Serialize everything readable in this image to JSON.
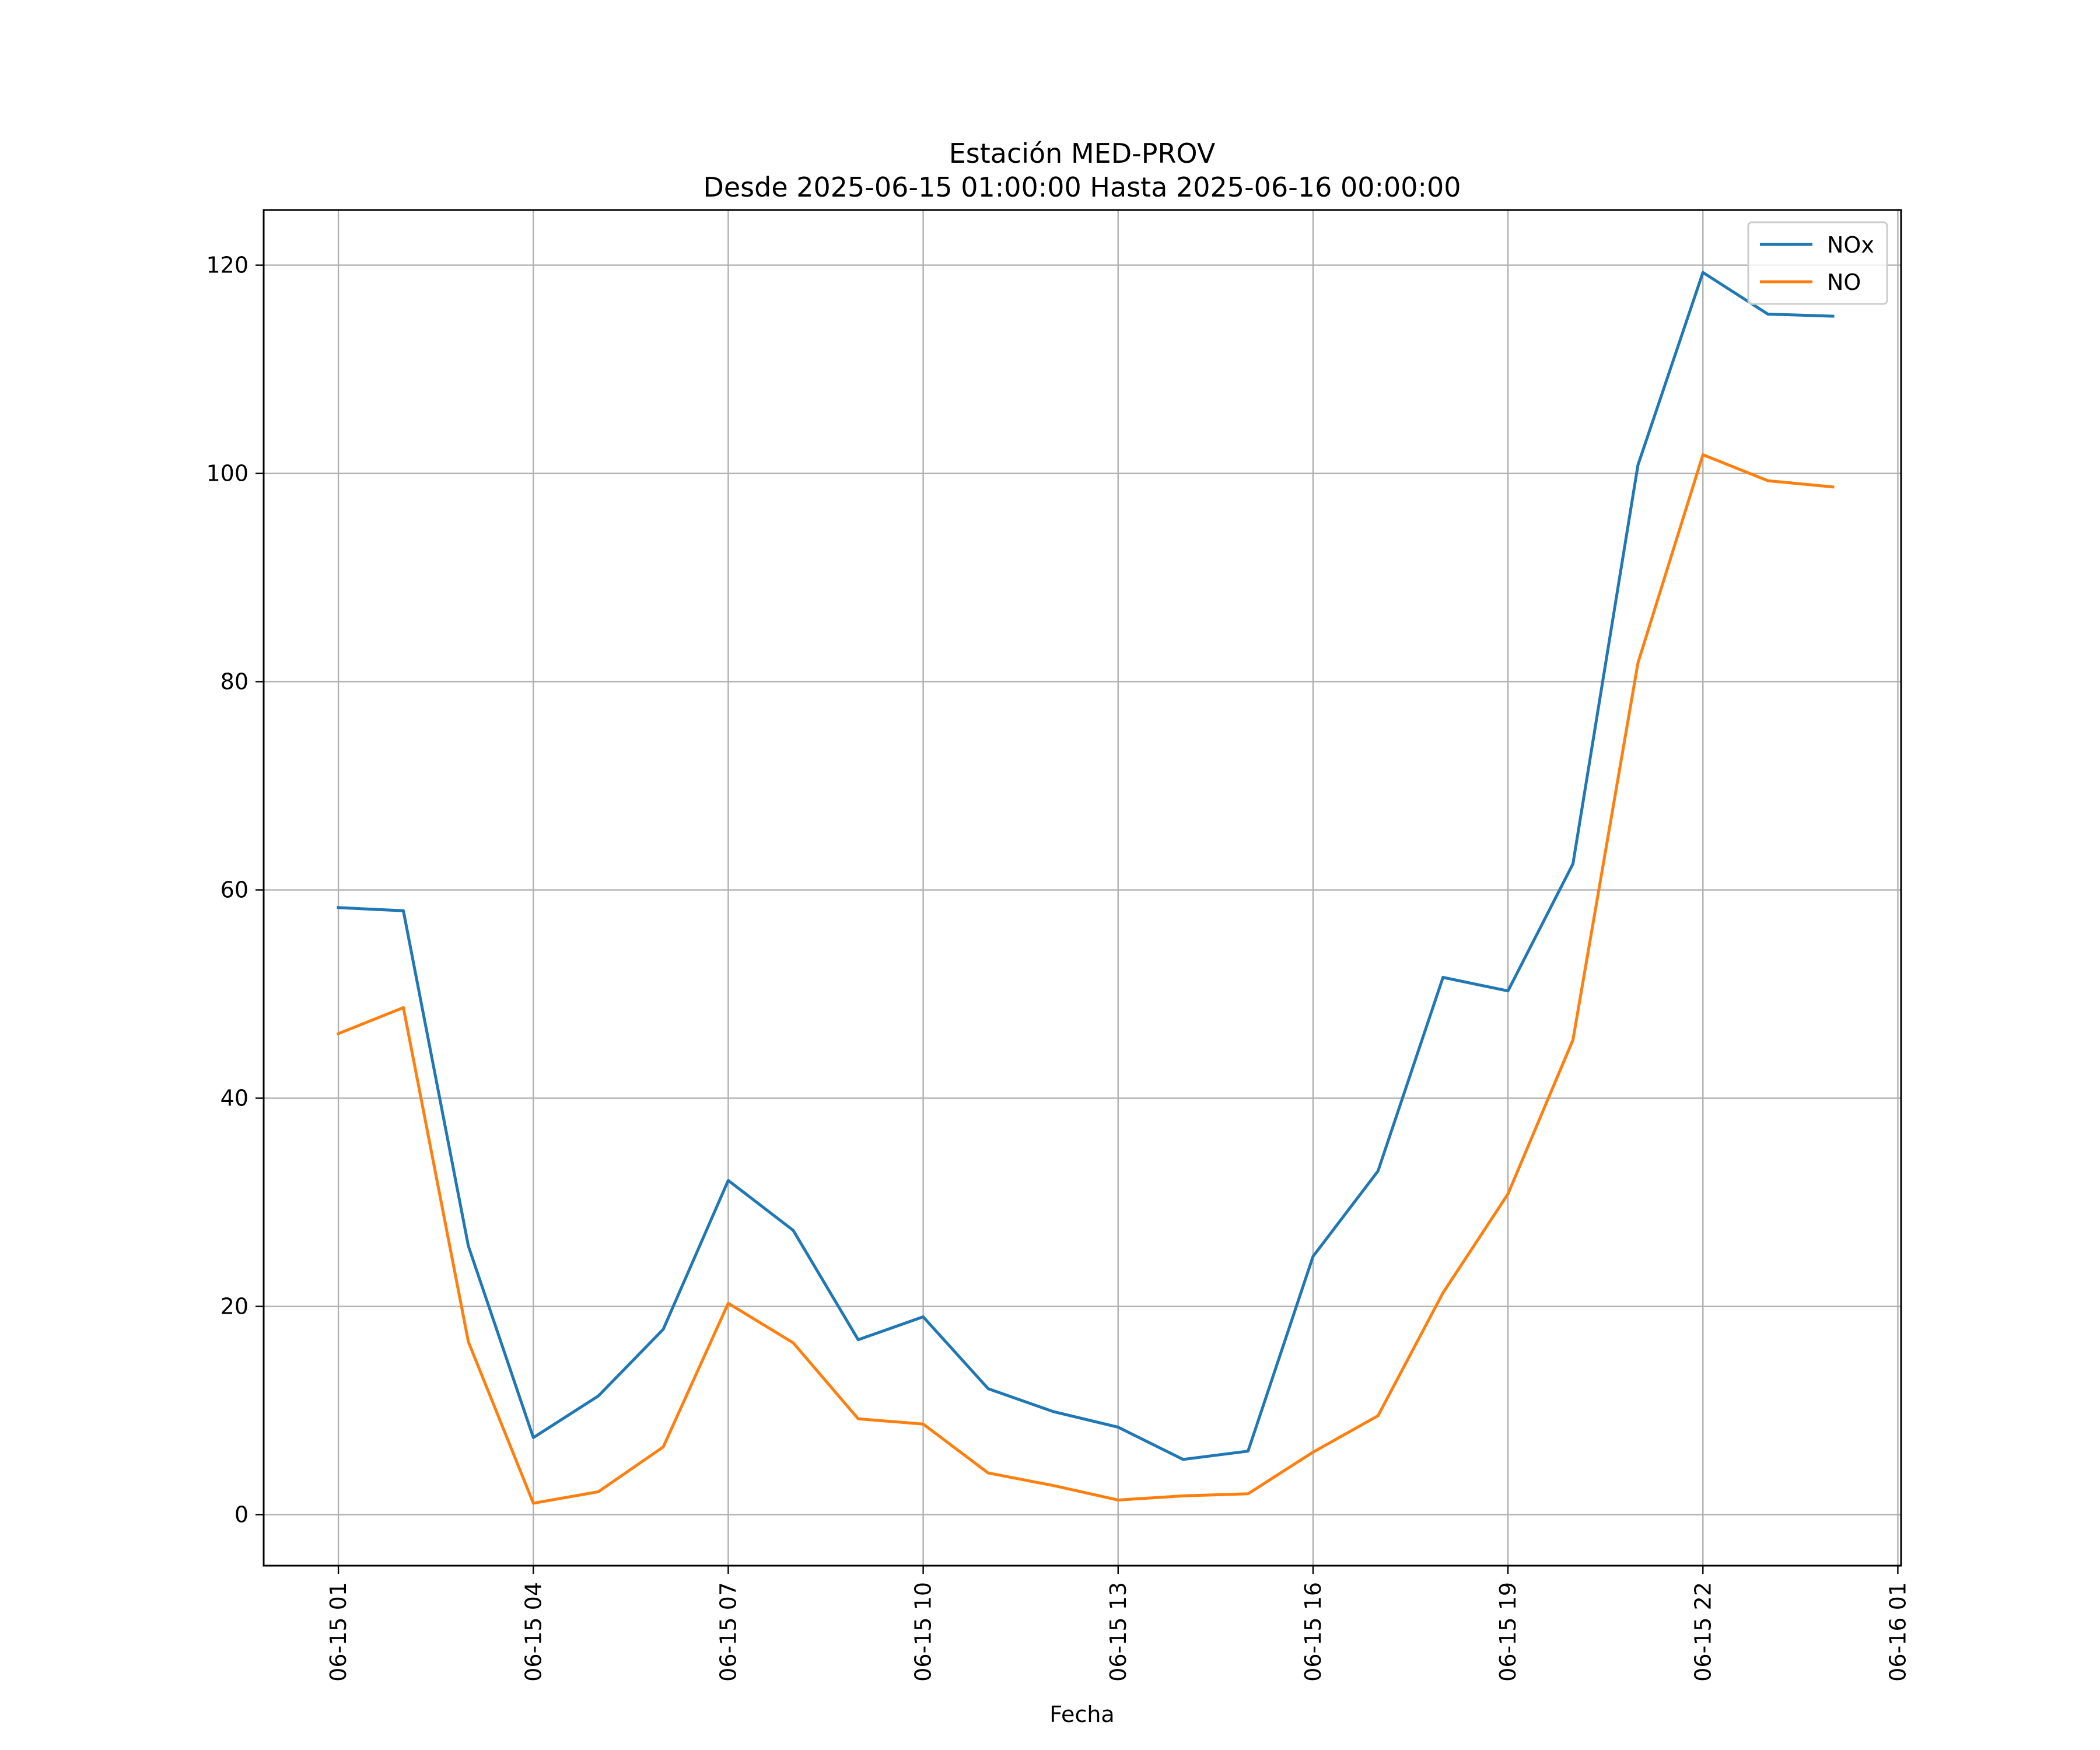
{
  "chart_data": {
    "type": "line",
    "title": "Estación MED-PROV",
    "subtitle": "Desde 2025-06-15 01:00:00 Hasta 2025-06-16 00:00:00",
    "xlabel": "Fecha",
    "ylabel": "",
    "x": [
      "2025-06-15 01:00",
      "2025-06-15 02:00",
      "2025-06-15 03:00",
      "2025-06-15 04:00",
      "2025-06-15 05:00",
      "2025-06-15 06:00",
      "2025-06-15 07:00",
      "2025-06-15 08:00",
      "2025-06-15 09:00",
      "2025-06-15 10:00",
      "2025-06-15 11:00",
      "2025-06-15 12:00",
      "2025-06-15 13:00",
      "2025-06-15 14:00",
      "2025-06-15 15:00",
      "2025-06-15 16:00",
      "2025-06-15 17:00",
      "2025-06-15 18:00",
      "2025-06-15 19:00",
      "2025-06-15 20:00",
      "2025-06-15 21:00",
      "2025-06-15 22:00",
      "2025-06-15 23:00",
      "2025-06-16 00:00"
    ],
    "series": [
      {
        "name": "NOx",
        "color": "#1f77b4",
        "values": [
          58.3,
          58.0,
          25.8,
          7.4,
          11.4,
          17.8,
          32.1,
          27.3,
          16.8,
          19.0,
          12.1,
          9.9,
          8.4,
          5.3,
          6.1,
          24.8,
          33.0,
          51.6,
          50.3,
          62.5,
          100.8,
          119.3,
          115.3,
          115.1
        ]
      },
      {
        "name": "NO",
        "color": "#ff7f0e",
        "values": [
          46.2,
          48.7,
          16.6,
          1.1,
          2.2,
          6.5,
          20.3,
          16.5,
          9.2,
          8.7,
          4.0,
          2.8,
          1.4,
          1.8,
          2.0,
          6.0,
          9.5,
          21.3,
          30.8,
          45.6,
          81.8,
          101.8,
          99.3,
          98.7
        ]
      }
    ],
    "x_ticks": [
      "06-15 01",
      "06-15 04",
      "06-15 07",
      "06-15 10",
      "06-15 13",
      "06-15 16",
      "06-15 19",
      "06-15 22",
      "06-16 01"
    ],
    "x_tick_values": [
      "2025-06-15 01:00",
      "2025-06-15 04:00",
      "2025-06-15 07:00",
      "2025-06-15 10:00",
      "2025-06-15 13:00",
      "2025-06-15 16:00",
      "2025-06-15 19:00",
      "2025-06-15 22:00",
      "2025-06-16 01:00"
    ],
    "xlim": [
      "2025-06-14 23:51",
      "2025-06-16 01:03"
    ],
    "y_ticks": [
      0,
      20,
      40,
      60,
      80,
      100,
      120
    ],
    "ylim": [
      -4.9,
      125.3
    ],
    "grid": true,
    "legend_position": "top-right"
  }
}
